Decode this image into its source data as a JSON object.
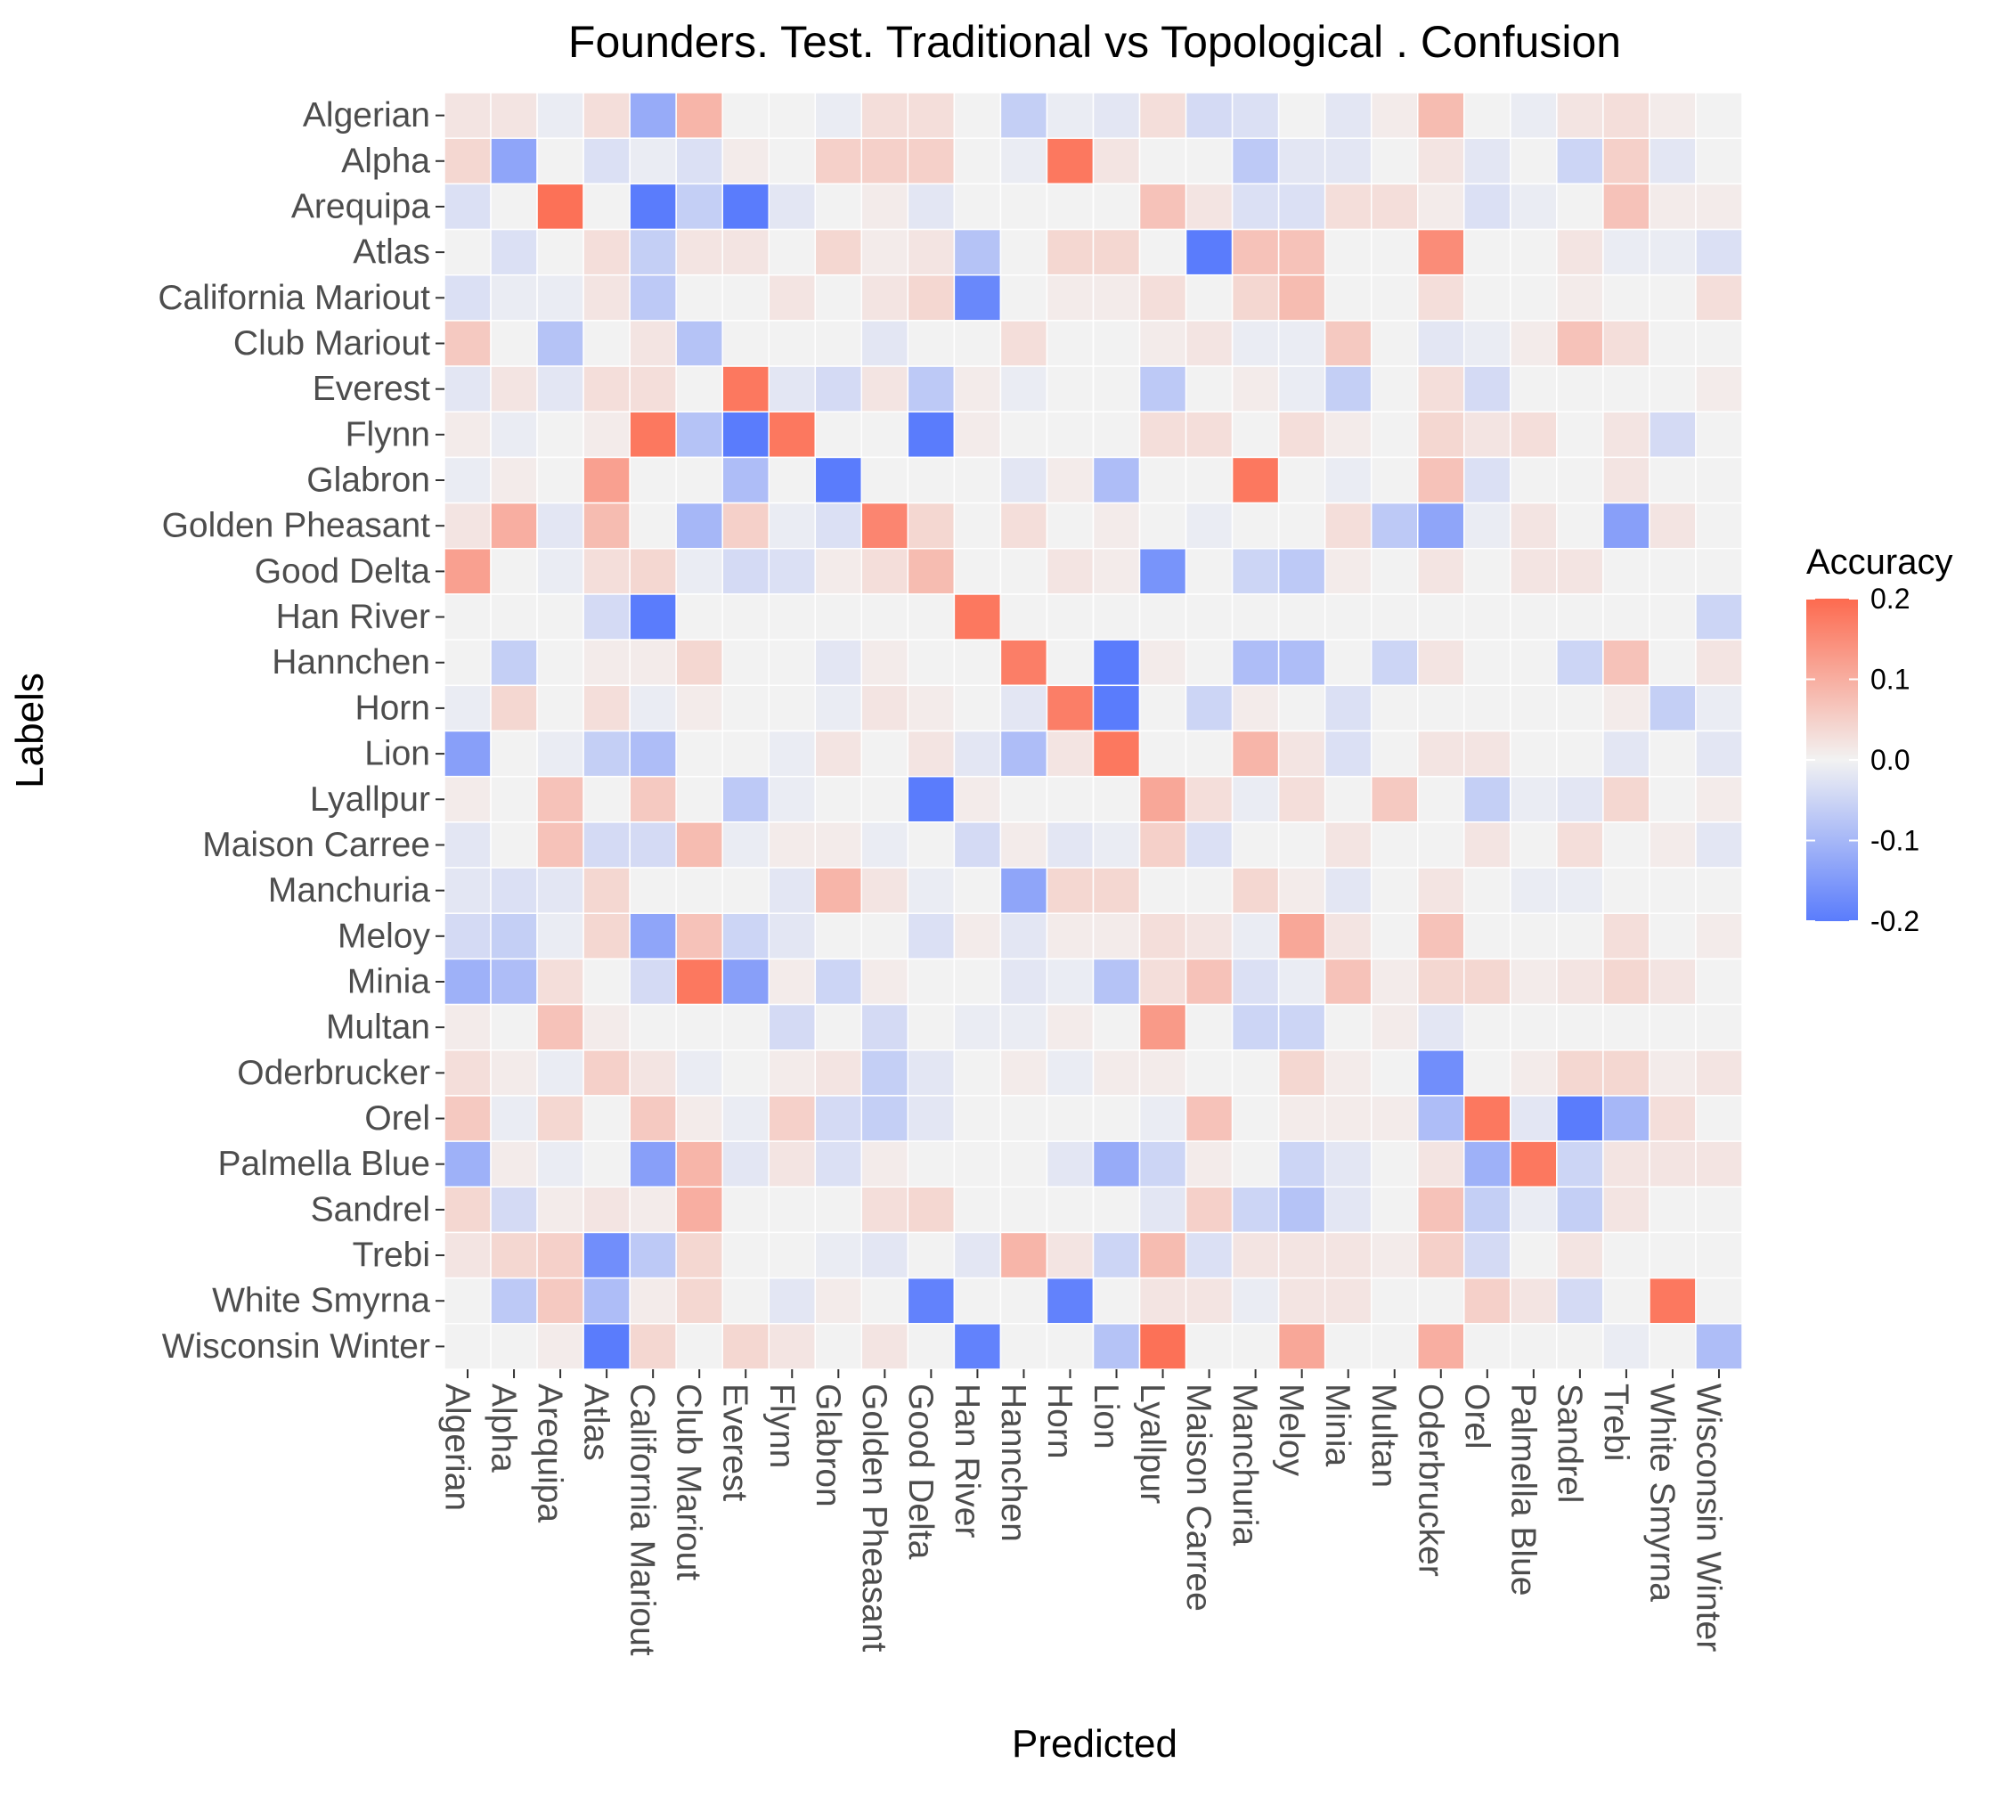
{
  "chart_data": {
    "type": "heatmap",
    "title": "Founders. Test. Traditional vs Topological . Confusion",
    "xlabel": "Predicted",
    "ylabel": "Labels",
    "categories": [
      "Algerian",
      "Alpha",
      "Arequipa",
      "Atlas",
      "California Mariout",
      "Club Mariout",
      "Everest",
      "Flynn",
      "Glabron",
      "Golden Pheasant",
      "Good Delta",
      "Han River",
      "Hannchen",
      "Horn",
      "Lion",
      "Lyallpur",
      "Maison Carree",
      "Manchuria",
      "Meloy",
      "Minia",
      "Multan",
      "Oderbrucker",
      "Orel",
      "Palmella Blue",
      "Sandrel",
      "Trebi",
      "White Smyrna",
      "Wisconsin Winter"
    ],
    "legend": {
      "title": "Accuracy",
      "ticks": [
        "0.2",
        "0.1",
        "0.0",
        "-0.1",
        "-0.2"
      ],
      "tick_values": [
        0.2,
        0.1,
        0.0,
        -0.1,
        -0.2
      ],
      "range": [
        -0.2,
        0.2
      ],
      "low_color": "#5a7cfc",
      "mid_color": "#f2f2f2",
      "high_color": "#fd6a4f",
      "position": "right"
    },
    "grid": true,
    "values": [
      [
        0.02,
        0.02,
        -0.01,
        0.03,
        -0.12,
        0.09,
        0.0,
        0.0,
        -0.01,
        0.03,
        0.03,
        0.0,
        -0.06,
        -0.01,
        -0.02,
        0.03,
        -0.04,
        -0.03,
        0.0,
        -0.02,
        0.01,
        0.08,
        0.0,
        -0.01,
        0.02,
        0.03,
        0.01,
        0.0
      ],
      [
        0.04,
        -0.13,
        0.0,
        -0.03,
        -0.01,
        -0.03,
        0.01,
        0.0,
        0.05,
        0.05,
        0.05,
        0.0,
        -0.01,
        0.18,
        0.02,
        0.0,
        0.0,
        -0.07,
        -0.02,
        -0.02,
        0.0,
        0.02,
        -0.02,
        0.0,
        -0.05,
        0.05,
        -0.02,
        0.0
      ],
      [
        -0.03,
        0.0,
        0.19,
        0.0,
        -0.21,
        -0.06,
        -0.21,
        -0.02,
        0.0,
        0.01,
        -0.02,
        0.0,
        0.0,
        0.0,
        0.0,
        0.07,
        0.02,
        -0.03,
        -0.03,
        0.03,
        0.03,
        0.01,
        -0.03,
        -0.01,
        0.0,
        0.07,
        0.01,
        0.01
      ],
      [
        0.0,
        -0.03,
        0.0,
        0.03,
        -0.06,
        0.02,
        0.02,
        0.0,
        0.04,
        0.01,
        0.02,
        -0.08,
        0.0,
        0.04,
        0.04,
        0.0,
        -0.2,
        0.07,
        0.07,
        0.0,
        0.0,
        0.15,
        0.0,
        0.0,
        0.02,
        -0.01,
        -0.01,
        -0.03
      ],
      [
        -0.03,
        -0.01,
        -0.01,
        0.02,
        -0.07,
        0.0,
        0.0,
        0.02,
        0.0,
        0.02,
        0.04,
        -0.18,
        0.0,
        0.01,
        0.01,
        0.03,
        0.0,
        0.04,
        0.08,
        0.0,
        0.0,
        0.03,
        0.0,
        0.0,
        0.01,
        0.0,
        0.0,
        0.03
      ],
      [
        0.06,
        0.0,
        -0.08,
        0.0,
        0.02,
        -0.08,
        0.0,
        0.0,
        0.0,
        -0.02,
        0.0,
        0.0,
        0.03,
        0.0,
        0.0,
        0.01,
        0.02,
        -0.01,
        -0.01,
        0.06,
        0.0,
        -0.02,
        -0.01,
        0.01,
        0.07,
        0.03,
        0.0,
        0.0
      ],
      [
        -0.02,
        0.02,
        -0.02,
        0.03,
        0.03,
        0.0,
        0.18,
        -0.02,
        -0.04,
        0.02,
        -0.07,
        0.01,
        -0.01,
        0.0,
        0.0,
        -0.07,
        0.0,
        0.01,
        -0.01,
        -0.06,
        0.0,
        0.03,
        -0.04,
        0.0,
        0.0,
        0.0,
        0.0,
        0.01
      ],
      [
        0.01,
        -0.01,
        0.0,
        0.01,
        0.18,
        -0.08,
        -0.21,
        0.18,
        0.0,
        0.0,
        -0.2,
        0.01,
        0.0,
        0.0,
        0.0,
        0.03,
        0.03,
        0.0,
        0.03,
        0.01,
        0.0,
        0.04,
        0.02,
        0.03,
        0.0,
        0.02,
        -0.04,
        0.0
      ],
      [
        -0.01,
        0.01,
        0.0,
        0.12,
        0.0,
        0.0,
        -0.09,
        0.0,
        -0.2,
        0.0,
        0.0,
        0.0,
        -0.02,
        0.01,
        -0.09,
        0.0,
        0.0,
        0.18,
        0.0,
        -0.01,
        0.0,
        0.07,
        -0.03,
        0.0,
        0.0,
        0.02,
        0.0,
        0.0
      ],
      [
        0.02,
        0.1,
        -0.02,
        0.08,
        0.0,
        -0.1,
        0.05,
        -0.01,
        -0.03,
        0.16,
        0.04,
        0.0,
        0.03,
        0.0,
        0.01,
        0.0,
        -0.01,
        0.0,
        0.0,
        0.03,
        -0.07,
        -0.13,
        -0.01,
        0.02,
        0.0,
        -0.14,
        0.02,
        0.0
      ],
      [
        0.12,
        0.0,
        -0.01,
        0.03,
        0.04,
        -0.01,
        -0.04,
        -0.03,
        0.01,
        0.03,
        0.08,
        0.0,
        0.0,
        0.02,
        0.01,
        -0.16,
        0.0,
        -0.05,
        -0.07,
        0.01,
        0.0,
        0.02,
        0.0,
        0.02,
        0.02,
        0.0,
        0.0,
        0.0
      ],
      [
        0.0,
        0.0,
        0.0,
        -0.04,
        -0.21,
        0.0,
        0.0,
        0.0,
        0.0,
        0.0,
        0.0,
        0.18,
        0.0,
        0.0,
        0.0,
        0.0,
        0.0,
        0.0,
        0.0,
        0.0,
        0.0,
        0.0,
        0.0,
        0.0,
        0.0,
        0.0,
        0.0,
        -0.05
      ],
      [
        0.0,
        -0.06,
        0.0,
        0.01,
        0.01,
        0.04,
        0.0,
        0.0,
        -0.02,
        0.01,
        0.0,
        0.0,
        0.17,
        0.0,
        -0.21,
        0.01,
        0.0,
        -0.09,
        -0.09,
        0.0,
        -0.05,
        0.02,
        0.0,
        0.0,
        -0.05,
        0.07,
        0.0,
        0.02
      ],
      [
        -0.01,
        0.04,
        0.0,
        0.03,
        -0.01,
        0.01,
        0.0,
        0.0,
        -0.01,
        0.02,
        0.01,
        0.0,
        -0.02,
        0.17,
        -0.21,
        0.0,
        -0.05,
        0.01,
        0.0,
        -0.03,
        0.0,
        0.0,
        0.0,
        0.0,
        0.0,
        0.01,
        -0.06,
        -0.01
      ],
      [
        -0.14,
        0.0,
        -0.01,
        -0.06,
        -0.09,
        0.0,
        0.0,
        -0.01,
        0.02,
        0.0,
        0.02,
        -0.02,
        -0.09,
        0.02,
        0.18,
        0.0,
        0.0,
        0.09,
        0.02,
        -0.03,
        0.0,
        0.02,
        0.02,
        0.0,
        0.0,
        -0.02,
        0.0,
        -0.02
      ],
      [
        0.01,
        0.0,
        0.07,
        0.0,
        0.06,
        0.0,
        -0.07,
        -0.01,
        0.0,
        0.0,
        -0.2,
        0.01,
        0.0,
        0.0,
        0.0,
        0.11,
        0.03,
        -0.01,
        0.03,
        0.0,
        0.06,
        0.0,
        -0.06,
        -0.01,
        -0.02,
        0.04,
        0.0,
        0.01
      ],
      [
        -0.02,
        0.0,
        0.07,
        -0.04,
        -0.04,
        0.08,
        -0.01,
        0.01,
        0.01,
        -0.01,
        0.0,
        -0.04,
        0.01,
        -0.02,
        -0.01,
        0.05,
        -0.03,
        0.0,
        0.0,
        0.02,
        0.0,
        0.0,
        0.02,
        0.0,
        0.03,
        0.0,
        0.01,
        -0.02
      ],
      [
        -0.02,
        -0.03,
        -0.02,
        0.04,
        0.0,
        0.0,
        0.0,
        -0.02,
        0.09,
        0.02,
        -0.01,
        0.0,
        -0.13,
        0.04,
        0.04,
        0.0,
        0.0,
        0.04,
        0.01,
        -0.02,
        0.0,
        0.02,
        0.0,
        -0.01,
        -0.01,
        0.0,
        0.0,
        0.0
      ],
      [
        -0.04,
        -0.06,
        -0.01,
        0.04,
        -0.13,
        0.07,
        -0.05,
        -0.02,
        0.0,
        0.0,
        -0.03,
        0.01,
        -0.02,
        0.01,
        0.01,
        0.03,
        0.02,
        -0.01,
        0.11,
        0.02,
        0.0,
        0.07,
        0.0,
        0.0,
        0.0,
        0.03,
        0.0,
        0.01
      ],
      [
        -0.11,
        -0.09,
        0.03,
        0.0,
        -0.04,
        0.18,
        -0.14,
        0.01,
        -0.05,
        0.01,
        0.0,
        0.0,
        -0.02,
        -0.01,
        -0.08,
        0.03,
        0.07,
        -0.03,
        -0.01,
        0.07,
        0.01,
        0.04,
        0.04,
        0.01,
        0.02,
        0.04,
        0.02,
        0.0
      ],
      [
        0.01,
        0.0,
        0.07,
        0.01,
        0.0,
        0.0,
        0.0,
        -0.04,
        0.0,
        -0.04,
        0.0,
        -0.01,
        -0.01,
        0.01,
        0.0,
        0.13,
        0.0,
        -0.05,
        -0.05,
        0.0,
        0.01,
        -0.02,
        0.0,
        0.0,
        0.0,
        0.0,
        0.0,
        0.0
      ],
      [
        0.03,
        0.01,
        -0.01,
        0.05,
        0.02,
        -0.01,
        0.0,
        0.01,
        0.02,
        -0.06,
        -0.02,
        0.0,
        0.01,
        -0.01,
        0.01,
        0.01,
        0.0,
        0.0,
        0.04,
        0.01,
        0.0,
        -0.17,
        0.0,
        0.01,
        0.04,
        0.04,
        0.01,
        0.02
      ],
      [
        0.06,
        -0.01,
        0.04,
        0.0,
        0.06,
        0.01,
        -0.01,
        0.05,
        -0.04,
        -0.06,
        -0.02,
        0.0,
        0.0,
        0.0,
        0.0,
        -0.01,
        0.07,
        0.0,
        0.01,
        0.01,
        0.01,
        -0.09,
        0.18,
        -0.02,
        -0.2,
        -0.1,
        0.03,
        0.0
      ],
      [
        -0.11,
        0.01,
        -0.01,
        0.0,
        -0.14,
        0.09,
        -0.02,
        0.02,
        -0.03,
        0.01,
        0.0,
        0.0,
        0.0,
        -0.02,
        -0.12,
        -0.05,
        0.01,
        0.0,
        -0.05,
        -0.02,
        0.0,
        0.02,
        -0.11,
        0.18,
        -0.05,
        0.02,
        0.02,
        0.02
      ],
      [
        0.04,
        -0.04,
        0.01,
        0.02,
        0.01,
        0.1,
        0.0,
        0.0,
        0.0,
        0.03,
        0.04,
        0.0,
        0.0,
        0.0,
        0.0,
        -0.02,
        0.05,
        -0.05,
        -0.08,
        -0.02,
        0.0,
        0.07,
        -0.06,
        -0.01,
        -0.06,
        0.02,
        0.0,
        0.0
      ],
      [
        0.02,
        0.04,
        0.05,
        -0.17,
        -0.07,
        0.04,
        0.0,
        0.0,
        -0.01,
        -0.02,
        0.0,
        -0.02,
        0.09,
        0.02,
        -0.05,
        0.08,
        -0.03,
        0.02,
        0.02,
        0.02,
        0.01,
        0.05,
        -0.04,
        0.0,
        0.02,
        0.0,
        0.0,
        0.0
      ],
      [
        0.0,
        -0.07,
        0.06,
        -0.09,
        0.01,
        0.04,
        0.0,
        -0.02,
        0.01,
        0.0,
        -0.19,
        0.0,
        0.0,
        -0.19,
        0.0,
        0.02,
        0.02,
        -0.01,
        0.02,
        0.02,
        0.0,
        0.0,
        0.05,
        0.02,
        -0.04,
        0.0,
        0.18,
        0.0
      ],
      [
        0.0,
        0.0,
        0.01,
        -0.21,
        0.04,
        0.0,
        0.04,
        0.02,
        0.0,
        0.02,
        0.0,
        -0.19,
        0.0,
        0.0,
        -0.08,
        0.19,
        0.0,
        0.0,
        0.11,
        0.0,
        0.0,
        0.1,
        0.0,
        0.0,
        0.0,
        -0.01,
        0.0,
        -0.09
      ]
    ]
  }
}
